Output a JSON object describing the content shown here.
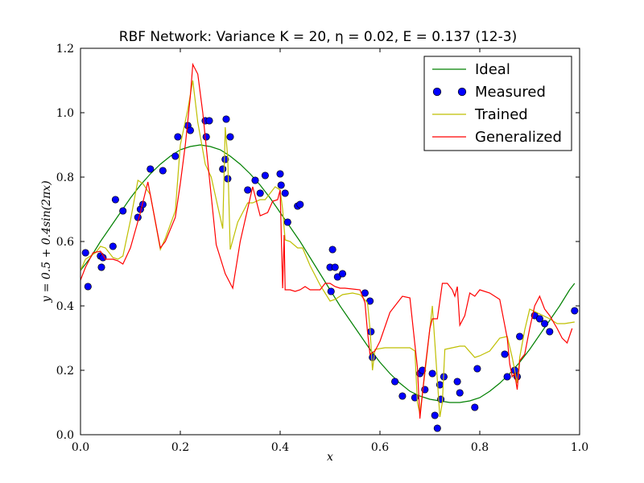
{
  "chart_data": {
    "type": "line",
    "title": "RBF Network: Variance K = 20, η = 0.02, E = 0.137 (12-3)",
    "xlabel": "x",
    "ylabel": "y = 0.5 + 0.4sin(2πx)",
    "xlim": [
      0.0,
      1.0
    ],
    "ylim": [
      0.0,
      1.2
    ],
    "xticks": [
      "0.0",
      "0.2",
      "0.4",
      "0.6",
      "0.8",
      "1.0"
    ],
    "yticks": [
      "0.0",
      "0.2",
      "0.4",
      "0.6",
      "0.8",
      "1.0",
      "1.2"
    ],
    "grid": false,
    "legend_position": "top-right",
    "series": [
      {
        "name": "Ideal",
        "style": "line",
        "color": "#008000",
        "x": [
          0.0,
          0.02,
          0.04,
          0.06,
          0.08,
          0.1,
          0.12,
          0.14,
          0.16,
          0.18,
          0.2,
          0.22,
          0.24,
          0.26,
          0.28,
          0.3,
          0.32,
          0.34,
          0.36,
          0.38,
          0.4,
          0.42,
          0.44,
          0.46,
          0.48,
          0.5,
          0.52,
          0.54,
          0.56,
          0.58,
          0.6,
          0.62,
          0.64,
          0.66,
          0.68,
          0.7,
          0.72,
          0.74,
          0.76,
          0.78,
          0.8,
          0.82,
          0.84,
          0.86,
          0.88,
          0.9,
          0.92,
          0.94,
          0.96,
          0.98,
          0.99
        ],
        "y": [
          0.51,
          0.55,
          0.6,
          0.645,
          0.69,
          0.735,
          0.775,
          0.81,
          0.84,
          0.865,
          0.885,
          0.895,
          0.9,
          0.895,
          0.885,
          0.865,
          0.84,
          0.81,
          0.775,
          0.735,
          0.69,
          0.645,
          0.6,
          0.55,
          0.5,
          0.45,
          0.4,
          0.355,
          0.31,
          0.265,
          0.225,
          0.19,
          0.16,
          0.135,
          0.12,
          0.11,
          0.105,
          0.1,
          0.1,
          0.105,
          0.115,
          0.135,
          0.16,
          0.19,
          0.225,
          0.265,
          0.31,
          0.355,
          0.4,
          0.45,
          0.47
        ]
      },
      {
        "name": "Measured",
        "style": "markers",
        "color": "#0000ff",
        "x": [
          0.01,
          0.015,
          0.04,
          0.042,
          0.045,
          0.065,
          0.07,
          0.085,
          0.115,
          0.12,
          0.125,
          0.14,
          0.165,
          0.19,
          0.195,
          0.215,
          0.22,
          0.25,
          0.252,
          0.258,
          0.285,
          0.29,
          0.292,
          0.295,
          0.3,
          0.335,
          0.35,
          0.36,
          0.37,
          0.4,
          0.402,
          0.41,
          0.415,
          0.435,
          0.44,
          0.5,
          0.502,
          0.505,
          0.51,
          0.515,
          0.525,
          0.57,
          0.58,
          0.582,
          0.585,
          0.63,
          0.645,
          0.67,
          0.68,
          0.685,
          0.69,
          0.705,
          0.71,
          0.715,
          0.72,
          0.722,
          0.728,
          0.755,
          0.76,
          0.79,
          0.795,
          0.85,
          0.855,
          0.87,
          0.875,
          0.88,
          0.91,
          0.92,
          0.93,
          0.94,
          0.99
        ],
        "y": [
          0.565,
          0.46,
          0.555,
          0.52,
          0.55,
          0.585,
          0.73,
          0.695,
          0.675,
          0.7,
          0.715,
          0.825,
          0.82,
          0.865,
          0.925,
          0.96,
          0.945,
          0.975,
          0.925,
          0.975,
          0.825,
          0.855,
          0.98,
          0.795,
          0.925,
          0.76,
          0.79,
          0.75,
          0.805,
          0.81,
          0.775,
          0.75,
          0.66,
          0.71,
          0.715,
          0.52,
          0.445,
          0.575,
          0.52,
          0.49,
          0.5,
          0.44,
          0.415,
          0.32,
          0.24,
          0.165,
          0.12,
          0.115,
          0.19,
          0.2,
          0.14,
          0.19,
          0.06,
          0.02,
          0.155,
          0.11,
          0.18,
          0.165,
          0.13,
          0.085,
          0.205,
          0.25,
          0.18,
          0.2,
          0.18,
          0.305,
          0.37,
          0.36,
          0.345,
          0.32,
          0.385
        ]
      },
      {
        "name": "Trained",
        "style": "line",
        "color": "#bfbf00",
        "x": [
          0.0,
          0.01,
          0.03,
          0.04,
          0.05,
          0.065,
          0.075,
          0.085,
          0.1,
          0.115,
          0.125,
          0.14,
          0.16,
          0.17,
          0.19,
          0.2,
          0.215,
          0.225,
          0.235,
          0.25,
          0.262,
          0.285,
          0.29,
          0.295,
          0.3,
          0.315,
          0.335,
          0.345,
          0.36,
          0.37,
          0.39,
          0.4,
          0.405,
          0.41,
          0.42,
          0.435,
          0.445,
          0.46,
          0.48,
          0.5,
          0.51,
          0.525,
          0.545,
          0.56,
          0.575,
          0.58,
          0.585,
          0.59,
          0.61,
          0.63,
          0.64,
          0.66,
          0.67,
          0.675,
          0.68,
          0.69,
          0.705,
          0.72,
          0.725,
          0.73,
          0.745,
          0.76,
          0.77,
          0.79,
          0.8,
          0.82,
          0.84,
          0.855,
          0.865,
          0.875,
          0.88,
          0.89,
          0.9,
          0.92,
          0.94,
          0.955,
          0.97,
          0.99
        ],
        "y": [
          0.51,
          0.545,
          0.565,
          0.585,
          0.58,
          0.55,
          0.545,
          0.555,
          0.665,
          0.79,
          0.78,
          0.745,
          0.575,
          0.61,
          0.695,
          0.9,
          1.01,
          1.1,
          0.97,
          0.84,
          0.8,
          0.64,
          0.955,
          0.86,
          0.575,
          0.66,
          0.72,
          0.72,
          0.73,
          0.73,
          0.77,
          0.76,
          0.7,
          0.605,
          0.6,
          0.58,
          0.58,
          0.525,
          0.465,
          0.415,
          0.42,
          0.435,
          0.44,
          0.435,
          0.41,
          0.33,
          0.2,
          0.265,
          0.27,
          0.27,
          0.27,
          0.27,
          0.26,
          0.1,
          0.065,
          0.19,
          0.4,
          0.055,
          0.1,
          0.265,
          0.27,
          0.275,
          0.275,
          0.24,
          0.245,
          0.26,
          0.3,
          0.305,
          0.24,
          0.16,
          0.24,
          0.325,
          0.39,
          0.375,
          0.36,
          0.345,
          0.345,
          0.35
        ]
      },
      {
        "name": "Generalized",
        "style": "line",
        "color": "#ff0000",
        "x": [
          0.0,
          0.01,
          0.025,
          0.04,
          0.05,
          0.065,
          0.075,
          0.085,
          0.1,
          0.12,
          0.135,
          0.16,
          0.17,
          0.19,
          0.2,
          0.21,
          0.22,
          0.225,
          0.235,
          0.245,
          0.258,
          0.272,
          0.29,
          0.305,
          0.32,
          0.345,
          0.36,
          0.375,
          0.385,
          0.395,
          0.4,
          0.405,
          0.408,
          0.41,
          0.42,
          0.43,
          0.44,
          0.45,
          0.46,
          0.48,
          0.49,
          0.5,
          0.51,
          0.52,
          0.53,
          0.56,
          0.57,
          0.575,
          0.58,
          0.59,
          0.6,
          0.62,
          0.645,
          0.66,
          0.67,
          0.675,
          0.68,
          0.69,
          0.7,
          0.705,
          0.715,
          0.725,
          0.735,
          0.745,
          0.75,
          0.755,
          0.76,
          0.77,
          0.78,
          0.79,
          0.8,
          0.82,
          0.84,
          0.855,
          0.86,
          0.865,
          0.87,
          0.875,
          0.88,
          0.89,
          0.9,
          0.91,
          0.92,
          0.93,
          0.94,
          0.955,
          0.965,
          0.975,
          0.985
        ],
        "y": [
          0.48,
          0.52,
          0.565,
          0.57,
          0.545,
          0.545,
          0.54,
          0.53,
          0.58,
          0.69,
          0.785,
          0.58,
          0.6,
          0.675,
          0.78,
          0.9,
          1.05,
          1.15,
          1.12,
          1.0,
          0.8,
          0.59,
          0.5,
          0.455,
          0.6,
          0.77,
          0.68,
          0.69,
          0.725,
          0.73,
          0.76,
          0.455,
          0.62,
          0.45,
          0.45,
          0.445,
          0.45,
          0.46,
          0.45,
          0.45,
          0.47,
          0.47,
          0.46,
          0.455,
          0.455,
          0.45,
          0.41,
          0.32,
          0.25,
          0.26,
          0.29,
          0.38,
          0.43,
          0.425,
          0.28,
          0.21,
          0.05,
          0.2,
          0.33,
          0.36,
          0.36,
          0.47,
          0.47,
          0.45,
          0.43,
          0.46,
          0.34,
          0.37,
          0.44,
          0.43,
          0.45,
          0.44,
          0.42,
          0.3,
          0.22,
          0.18,
          0.19,
          0.14,
          0.23,
          0.25,
          0.33,
          0.4,
          0.43,
          0.39,
          0.37,
          0.33,
          0.3,
          0.285,
          0.33
        ]
      }
    ]
  }
}
